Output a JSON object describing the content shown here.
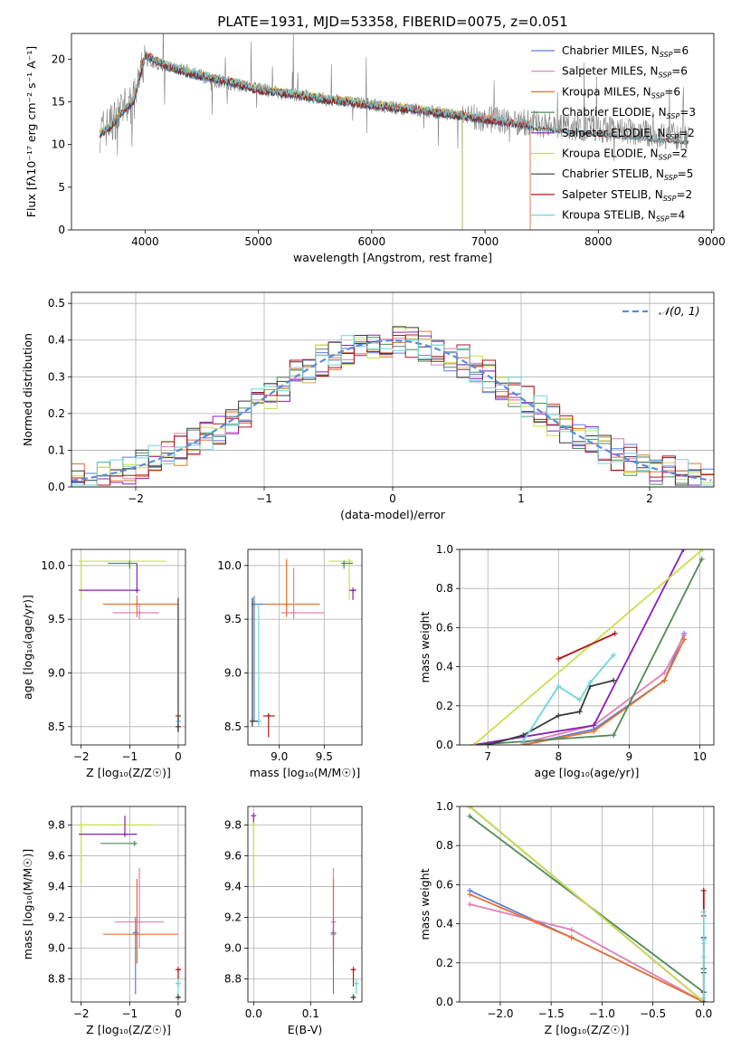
{
  "figure": {
    "title": "PLATE=1931, MJD=53358, FIBERID=0075, z=0.051"
  },
  "colors": {
    "chabrier_miles": "#5b7fd9",
    "salpeter_miles": "#e07fb3",
    "kroupa_miles": "#e6732e",
    "chabrier_elodie": "#4e8a5a",
    "salpeter_elodie": "#8a1fb5",
    "kroupa_elodie": "#c8e04a",
    "chabrier_stelib": "#3a3a3a",
    "salpeter_stelib": "#b01515",
    "kroupa_stelib": "#6fd6dd",
    "data": "#808080",
    "gaussian": "#5b8bd9",
    "grid": "#b0b0b0"
  },
  "chart_data": [
    {
      "type": "line",
      "id": "spectrum",
      "title": "PLATE=1931, MJD=53358, FIBERID=0075, z=0.051",
      "xlabel": "wavelength [Angstrom, rest frame]",
      "ylabel": "Flux [fλ10⁻¹⁷ erg cm⁻² s⁻¹ A⁻¹]",
      "xlim": [
        3350,
        9020
      ],
      "ylim": [
        0,
        23
      ],
      "xticks": [
        4000,
        5000,
        6000,
        7000,
        8000,
        9000
      ],
      "yticks": [
        0,
        5,
        10,
        15,
        20
      ],
      "grid": false,
      "legend_position": "upper-right",
      "data_x": [
        3600,
        3700,
        3800,
        3900,
        4000,
        4100,
        4200,
        4400,
        4600,
        4800,
        5000,
        5200,
        5400,
        5600,
        5800,
        6000,
        6200,
        6400,
        6600,
        6800,
        7000,
        7200,
        7400,
        7600,
        7800,
        8000,
        8200,
        8400,
        8600,
        8800
      ],
      "data_y": [
        11.5,
        12.5,
        14,
        15,
        20,
        19.5,
        19,
        18.5,
        17.5,
        17,
        16.5,
        16,
        15.7,
        15.3,
        15,
        14.7,
        14.3,
        14,
        13.7,
        13.3,
        13,
        12.8,
        12.5,
        12.3,
        12,
        11.8,
        11.5,
        11.3,
        11,
        10.8
      ],
      "model_x": [
        3600,
        3700,
        3800,
        3900,
        4000,
        4100,
        4200,
        4400,
        4600,
        4800,
        5000,
        5200,
        5400,
        5600,
        5800,
        6000,
        6200,
        6400,
        6600,
        6800,
        7000,
        7200,
        7400
      ],
      "model_y": [
        11.2,
        12.2,
        13.8,
        15.2,
        20.5,
        19.8,
        19.2,
        18.3,
        17.8,
        17.2,
        16.4,
        16.1,
        15.7,
        15.3,
        15,
        14.6,
        14.4,
        14.1,
        13.7,
        13.4,
        13,
        12.6,
        12.3
      ],
      "series": [
        {
          "name": "Chabrier MILES, N$_{SSP}$=6",
          "label_base": "Chabrier MILES, N",
          "label_sub": "SSP",
          "label_tail": "=6",
          "color_key": "chabrier_miles",
          "xmax": 7400
        },
        {
          "name": "Salpeter MILES, N$_{SSP}$=6",
          "label_base": "Salpeter MILES, N",
          "label_sub": "SSP",
          "label_tail": "=6",
          "color_key": "salpeter_miles",
          "xmax": 7400
        },
        {
          "name": "Kroupa MILES, N$_{SSP}$=6",
          "label_base": "Kroupa MILES, N",
          "label_sub": "SSP",
          "label_tail": "=6",
          "color_key": "kroupa_miles",
          "xmax": 7400
        },
        {
          "name": "Chabrier ELODIE, N$_{SSP}$=3",
          "label_base": "Chabrier ELODIE, N",
          "label_sub": "SSP",
          "label_tail": "=3",
          "color_key": "chabrier_elodie",
          "xmax": 6800
        },
        {
          "name": "Salpeter ELODIE, N$_{SSP}$=2",
          "label_base": "Salpeter ELODIE, N",
          "label_sub": "SSP",
          "label_tail": "=2",
          "color_key": "salpeter_elodie",
          "xmax": 6800
        },
        {
          "name": "Kroupa ELODIE, N$_{SSP}$=2",
          "label_base": "Kroupa ELODIE, N",
          "label_sub": "SSP",
          "label_tail": "=2",
          "color_key": "kroupa_elodie",
          "xmax": 6800
        },
        {
          "name": "Chabrier STELIB, N$_{SSP}$=5",
          "label_base": "Chabrier STELIB, N",
          "label_sub": "SSP",
          "label_tail": "=5",
          "color_key": "chabrier_stelib",
          "xmax": 8800
        },
        {
          "name": "Salpeter STELIB, N$_{SSP}$=2",
          "label_base": "Salpeter STELIB, N",
          "label_sub": "SSP",
          "label_tail": "=2",
          "color_key": "salpeter_stelib",
          "xmax": 8800
        },
        {
          "name": "Kroupa STELIB, N$_{SSP}$=4",
          "label_base": "Kroupa STELIB, N",
          "label_sub": "SSP",
          "label_tail": "=4",
          "color_key": "kroupa_stelib",
          "xmax": 8800
        }
      ]
    },
    {
      "type": "line",
      "id": "residuals",
      "xlabel": "(data-model)/error",
      "ylabel": "Normed distribution",
      "xlim": [
        -2.5,
        2.5
      ],
      "ylim": [
        0,
        0.53
      ],
      "xticks": [
        -2,
        -1,
        0,
        1,
        2
      ],
      "yticks": [
        0.0,
        0.1,
        0.2,
        0.3,
        0.4,
        0.5
      ],
      "grid": true,
      "legend": "𝒩(0, 1)",
      "gaussian": {
        "mean": 0,
        "sigma": 1
      },
      "bin_width": 0.1
    },
    {
      "type": "scatter",
      "id": "age_vs_Z",
      "xlabel": "Z [log₁₀(Z/Z☉)]",
      "ylabel": "age  [log₁₀(age/yr)]",
      "xlim": [
        -2.2,
        0.15
      ],
      "ylim": [
        8.33,
        10.15
      ],
      "xticks": [
        -2,
        -1,
        0
      ],
      "yticks": [
        8.5,
        9.0,
        9.5,
        10.0
      ],
      "grid": true,
      "points": [
        {
          "color_key": "kroupa_elodie",
          "x": -2.0,
          "y": 10.04,
          "x0": -2.05,
          "x1": -0.25,
          "y0": 9.68,
          "y1": 10.04
        },
        {
          "color_key": "chabrier_elodie",
          "x": -1.0,
          "y": 10.02,
          "x0": -1.45,
          "x1": -0.85,
          "y0": 9.97,
          "y1": 10.02
        },
        {
          "color_key": "salpeter_elodie",
          "x": -0.85,
          "y": 9.77,
          "x0": -2.05,
          "x1": -0.85,
          "y0": 9.77,
          "y1": 10.02
        },
        {
          "color_key": "kroupa_miles",
          "x": -0.85,
          "y": 9.64,
          "x0": -1.55,
          "x1": 0.0,
          "y0": 9.52,
          "y1": 9.72
        },
        {
          "color_key": "salpeter_miles",
          "x": -0.8,
          "y": 9.56,
          "x0": -1.35,
          "x1": -0.4,
          "y0": 9.5,
          "y1": 9.65
        },
        {
          "color_key": "salpeter_stelib",
          "x": 0.0,
          "y": 8.6,
          "x0": 0.0,
          "x1": 0.05,
          "y0": 8.45,
          "y1": 8.6
        },
        {
          "color_key": "kroupa_stelib",
          "x": 0.0,
          "y": 8.55,
          "x0": 0.0,
          "x1": 0.05,
          "y0": 8.5,
          "y1": 9.65
        },
        {
          "color_key": "chabrier_stelib",
          "x": 0.0,
          "y": 8.5,
          "x0": 0.0,
          "x1": 0.0,
          "y0": 8.45,
          "y1": 9.7
        }
      ]
    },
    {
      "type": "scatter",
      "id": "age_vs_mass",
      "xlabel": "mass [log₁₀(M/M☉)]",
      "ylabel": "",
      "xlim": [
        8.65,
        9.92
      ],
      "ylim": [
        8.33,
        10.15
      ],
      "xticks": [
        9.0,
        9.5
      ],
      "yticks": [
        8.5,
        9.0,
        9.5,
        10.0
      ],
      "grid": true,
      "points": [
        {
          "color_key": "kroupa_elodie",
          "x": 9.78,
          "y": 10.04,
          "x0": 9.55,
          "x1": 9.82,
          "y0": 9.68,
          "y1": 10.04
        },
        {
          "color_key": "chabrier_elodie",
          "x": 9.72,
          "y": 10.02,
          "x0": 9.7,
          "x1": 9.82,
          "y0": 9.97,
          "y1": 10.02
        },
        {
          "color_key": "salpeter_elodie",
          "x": 9.82,
          "y": 9.77,
          "x0": 9.78,
          "x1": 9.86,
          "y0": 9.68,
          "y1": 9.77
        },
        {
          "color_key": "kroupa_miles",
          "x": 9.08,
          "y": 9.64,
          "x0": 8.7,
          "x1": 9.45,
          "y0": 9.52,
          "y1": 10.06
        },
        {
          "color_key": "salpeter_miles",
          "x": 9.16,
          "y": 9.56,
          "x0": 9.02,
          "x1": 9.5,
          "y0": 9.5,
          "y1": 9.98
        },
        {
          "color_key": "chabrier_miles",
          "x": 8.72,
          "y": 9.64,
          "x0": 8.7,
          "x1": 8.85,
          "y0": 8.55,
          "y1": 9.72
        },
        {
          "color_key": "salpeter_stelib",
          "x": 8.88,
          "y": 8.6,
          "x0": 8.82,
          "x1": 8.95,
          "y0": 8.4,
          "y1": 8.6
        },
        {
          "color_key": "kroupa_stelib",
          "x": 8.77,
          "y": 8.55,
          "x0": 8.72,
          "x1": 8.8,
          "y0": 8.5,
          "y1": 9.65
        },
        {
          "color_key": "chabrier_stelib",
          "x": 8.7,
          "y": 8.55,
          "x0": 8.7,
          "x1": 8.76,
          "y0": 8.5,
          "y1": 9.7
        }
      ]
    },
    {
      "type": "line",
      "id": "massweight_vs_age",
      "xlabel": "age  [log₁₀(age/yr)]",
      "ylabel": "mass weight",
      "xlim": [
        6.6,
        10.2
      ],
      "ylim": [
        0,
        1.0
      ],
      "xticks": [
        7,
        8,
        9,
        10
      ],
      "yticks": [
        0.0,
        0.2,
        0.4,
        0.6,
        0.8,
        1.0
      ],
      "grid": true,
      "series": [
        {
          "color_key": "chabrier_miles",
          "x": [
            7.5,
            8.5,
            9.5,
            9.78
          ],
          "y": [
            0.0,
            0.08,
            0.33,
            0.57
          ]
        },
        {
          "color_key": "salpeter_miles",
          "x": [
            7.5,
            8.5,
            9.5,
            9.78
          ],
          "y": [
            0.01,
            0.1,
            0.37,
            0.56
          ]
        },
        {
          "color_key": "kroupa_miles",
          "x": [
            7.5,
            8.5,
            9.5,
            9.78
          ],
          "y": [
            0.0,
            0.07,
            0.33,
            0.54
          ]
        },
        {
          "color_key": "chabrier_elodie",
          "x": [
            6.8,
            8.78,
            10.03
          ],
          "y": [
            0.0,
            0.05,
            0.95
          ]
        },
        {
          "color_key": "salpeter_elodie",
          "x": [
            6.8,
            8.5,
            9.77
          ],
          "y": [
            0.0,
            0.1,
            1.0
          ]
        },
        {
          "color_key": "kroupa_elodie",
          "x": [
            6.8,
            10.04
          ],
          "y": [
            0.0,
            1.0
          ]
        },
        {
          "color_key": "chabrier_stelib",
          "x": [
            7.0,
            7.5,
            8.0,
            8.3,
            8.45,
            8.78
          ],
          "y": [
            0.0,
            0.05,
            0.15,
            0.17,
            0.3,
            0.33
          ]
        },
        {
          "color_key": "salpeter_stelib",
          "x": [
            8.0,
            8.8
          ],
          "y": [
            0.44,
            0.57
          ]
        },
        {
          "color_key": "kroupa_stelib",
          "x": [
            7.5,
            8.0,
            8.3,
            8.45,
            8.78
          ],
          "y": [
            0.02,
            0.3,
            0.23,
            0.32,
            0.46
          ]
        }
      ]
    },
    {
      "type": "scatter",
      "id": "mass_vs_Z",
      "xlabel": "Z [log₁₀(Z/Z☉)]",
      "ylabel": "mass [log₁₀(M/M☉)]",
      "xlim": [
        -2.2,
        0.15
      ],
      "ylim": [
        8.65,
        9.92
      ],
      "xticks": [
        -2,
        -1,
        0
      ],
      "yticks": [
        8.8,
        9.0,
        9.2,
        9.4,
        9.6,
        9.8
      ],
      "grid": true,
      "points": [
        {
          "color_key": "kroupa_elodie",
          "x": -2.0,
          "y": 9.8,
          "x0": -2.05,
          "x1": -0.5,
          "y0": 9.42,
          "y1": 9.8
        },
        {
          "color_key": "salpeter_elodie",
          "x": -1.1,
          "y": 9.74,
          "x0": -2.05,
          "x1": -0.85,
          "y0": 9.74,
          "y1": 9.86
        },
        {
          "color_key": "chabrier_elodie",
          "x": -0.9,
          "y": 9.68,
          "x0": -1.6,
          "x1": -0.85,
          "y0": 9.68,
          "y1": 9.68
        },
        {
          "color_key": "salpeter_miles",
          "x": -0.8,
          "y": 9.17,
          "x0": -1.3,
          "x1": -0.3,
          "y0": 9.0,
          "y1": 9.52
        },
        {
          "color_key": "kroupa_miles",
          "x": -0.85,
          "y": 9.09,
          "x0": -1.55,
          "x1": 0.0,
          "y0": 8.9,
          "y1": 9.45
        },
        {
          "color_key": "chabrier_miles",
          "x": -0.88,
          "y": 9.1,
          "x0": -0.88,
          "x1": -0.88,
          "y0": 8.7,
          "y1": 9.2
        },
        {
          "color_key": "salpeter_stelib",
          "x": 0.0,
          "y": 8.86,
          "x0": 0.0,
          "x1": 0.05,
          "y0": 8.75,
          "y1": 8.86
        },
        {
          "color_key": "kroupa_stelib",
          "x": 0.0,
          "y": 8.77,
          "x0": 0.0,
          "x1": 0.05,
          "y0": 8.7,
          "y1": 8.8
        },
        {
          "color_key": "chabrier_stelib",
          "x": 0.0,
          "y": 8.68,
          "x0": 0.0,
          "x1": 0.05,
          "y0": 8.68,
          "y1": 8.7
        }
      ]
    },
    {
      "type": "scatter",
      "id": "mass_vs_ebv",
      "xlabel": "E(B-V)",
      "ylabel": "",
      "xlim": [
        -0.01,
        0.19
      ],
      "ylim": [
        8.65,
        9.92
      ],
      "xticks": [
        0.0,
        0.1
      ],
      "yticks": [
        8.8,
        9.0,
        9.2,
        9.4,
        9.6,
        9.8
      ],
      "grid": true,
      "points": [
        {
          "color_key": "salpeter_elodie",
          "x": 0.0,
          "y": 9.86,
          "y0": 9.8,
          "y1": 9.86
        },
        {
          "color_key": "kroupa_elodie",
          "x": 0.0,
          "y": 9.8,
          "y0": 9.42,
          "y1": 9.8
        },
        {
          "color_key": "salpeter_miles",
          "x": 0.14,
          "y": 9.17,
          "y0": 9.0,
          "y1": 9.52
        },
        {
          "color_key": "kroupa_miles",
          "x": 0.14,
          "y": 9.09,
          "y0": 8.9,
          "y1": 9.45
        },
        {
          "color_key": "chabrier_miles",
          "x": 0.14,
          "y": 9.1,
          "y0": 8.7,
          "y1": 9.2
        },
        {
          "color_key": "salpeter_stelib",
          "x": 0.175,
          "y": 8.86,
          "y0": 8.75,
          "y1": 8.86
        },
        {
          "color_key": "kroupa_stelib",
          "x": 0.18,
          "y": 8.77,
          "y0": 8.7,
          "y1": 8.8
        },
        {
          "color_key": "chabrier_stelib",
          "x": 0.175,
          "y": 8.68,
          "y0": 8.68,
          "y1": 8.7
        }
      ]
    },
    {
      "type": "line",
      "id": "massweight_vs_Z",
      "xlabel": "Z [log₁₀(Z/Z☉)]",
      "ylabel": "mass weight",
      "xlim": [
        -2.4,
        0.1
      ],
      "ylim": [
        0,
        1.0
      ],
      "xticks": [
        -2.0,
        -1.5,
        -1.0,
        -0.5,
        0.0
      ],
      "yticks": [
        0.0,
        0.2,
        0.4,
        0.6,
        0.8,
        1.0
      ],
      "grid": true,
      "series": [
        {
          "color_key": "chabrier_miles",
          "x": [
            -2.3,
            -1.3,
            0.0
          ],
          "y": [
            0.57,
            0.33,
            0.0
          ]
        },
        {
          "color_key": "salpeter_miles",
          "x": [
            -2.3,
            -1.3,
            0.0
          ],
          "y": [
            0.5,
            0.37,
            0.0
          ]
        },
        {
          "color_key": "kroupa_miles",
          "x": [
            -2.3,
            -1.3,
            0.0
          ],
          "y": [
            0.55,
            0.33,
            0.0
          ]
        },
        {
          "color_key": "chabrier_elodie",
          "x": [
            -2.3,
            0.0
          ],
          "y": [
            0.95,
            0.05
          ]
        },
        {
          "color_key": "salpeter_elodie",
          "x": [
            -2.3,
            0.0
          ],
          "y": [
            1.0,
            0.0
          ]
        },
        {
          "color_key": "kroupa_elodie",
          "x": [
            -2.3,
            0.0
          ],
          "y": [
            1.0,
            0.0
          ]
        },
        {
          "color_key": "chabrier_stelib",
          "x": [
            0.0,
            0.0,
            0.0,
            0.0,
            0.0
          ],
          "y": [
            0.0,
            0.05,
            0.15,
            0.17,
            0.33
          ]
        },
        {
          "color_key": "salpeter_stelib",
          "x": [
            0.0,
            0.0
          ],
          "y": [
            0.44,
            0.57
          ]
        },
        {
          "color_key": "kroupa_stelib",
          "x": [
            0.0,
            0.0,
            0.0,
            0.0,
            0.0
          ],
          "y": [
            0.02,
            0.23,
            0.3,
            0.32,
            0.46
          ]
        }
      ]
    }
  ]
}
